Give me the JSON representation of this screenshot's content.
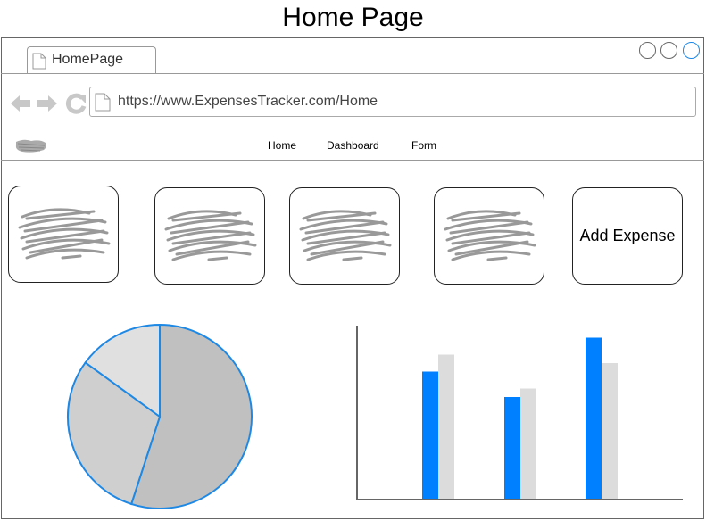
{
  "page": {
    "title": "Home Page"
  },
  "browser": {
    "tab_label": "HomePage",
    "url": "https://www.ExpensesTracker.com/Home",
    "window_buttons": [
      "minimize-button",
      "maximize-button",
      "close-button"
    ]
  },
  "nav": {
    "items": [
      {
        "label": "Home"
      },
      {
        "label": "Dashboard"
      },
      {
        "label": "Form"
      }
    ]
  },
  "cards": [
    {
      "kind": "placeholder"
    },
    {
      "kind": "placeholder"
    },
    {
      "kind": "placeholder"
    },
    {
      "kind": "placeholder"
    },
    {
      "kind": "action",
      "label": "Add Expense"
    }
  ],
  "colors": {
    "accent": "#1e88e5",
    "bar_primary": "#0080ff",
    "bar_secondary": "#dcdcdc",
    "pie_slices": [
      "#c0c0c0",
      "#cfcfcf",
      "#e0e0e0"
    ],
    "scribble": "#999999"
  },
  "chart_data": [
    {
      "type": "pie",
      "values": [
        55,
        30,
        15
      ]
    },
    {
      "type": "bar",
      "categories": [
        "",
        "",
        ""
      ],
      "series": [
        {
          "values": [
            75,
            60,
            95
          ]
        },
        {
          "values": [
            85,
            65,
            80
          ]
        }
      ],
      "ylim": [
        0,
        100
      ],
      "grid": false
    }
  ]
}
